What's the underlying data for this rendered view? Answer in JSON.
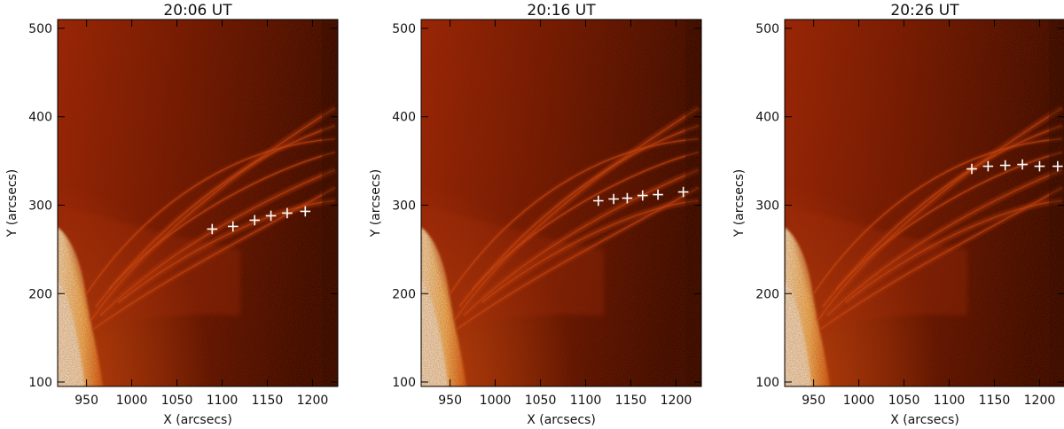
{
  "chart_data": [
    {
      "type": "scatter",
      "title": "20:06 UT",
      "xlabel": "X (arcsecs)",
      "ylabel": "Y (arcsecs)",
      "xlim": [
        918,
        1228
      ],
      "ylim": [
        95,
        510
      ],
      "xticks": [
        950,
        1000,
        1050,
        1100,
        1150,
        1200
      ],
      "yticks": [
        100,
        200,
        300,
        400,
        500
      ],
      "series": [
        {
          "x": [
            1089,
            1112,
            1136,
            1154,
            1172,
            1192
          ],
          "y": [
            273,
            276,
            283,
            288,
            291,
            293
          ]
        }
      ]
    },
    {
      "type": "scatter",
      "title": "20:16 UT",
      "xlabel": "X (arcsecs)",
      "ylabel": "Y (arcsecs)",
      "xlim": [
        918,
        1228
      ],
      "ylim": [
        95,
        510
      ],
      "xticks": [
        950,
        1000,
        1050,
        1100,
        1150,
        1200
      ],
      "yticks": [
        100,
        200,
        300,
        400,
        500
      ],
      "series": [
        {
          "x": [
            1114,
            1131,
            1146,
            1163,
            1180,
            1208
          ],
          "y": [
            305,
            307,
            308,
            311,
            312,
            315
          ]
        }
      ]
    },
    {
      "type": "scatter",
      "title": "20:26 UT",
      "xlabel": "X (arcsecs)",
      "ylabel": "Y (arcsecs)",
      "xlim": [
        918,
        1228
      ],
      "ylim": [
        95,
        510
      ],
      "xticks": [
        950,
        1000,
        1050,
        1100,
        1150,
        1200
      ],
      "yticks": [
        100,
        200,
        300,
        400,
        500
      ],
      "series": [
        {
          "x": [
            1125,
            1143,
            1162,
            1181,
            1200,
            1220
          ],
          "y": [
            341,
            344,
            345,
            346,
            344,
            344
          ]
        }
      ]
    }
  ],
  "colors": {
    "disk_bright": "#ffe6b0",
    "disk_mid": "#f07a22",
    "corona_dark": "#3a0500",
    "corona_mid": "#8c1c06",
    "loop": "#c0340e",
    "marker": "#ffffff"
  }
}
